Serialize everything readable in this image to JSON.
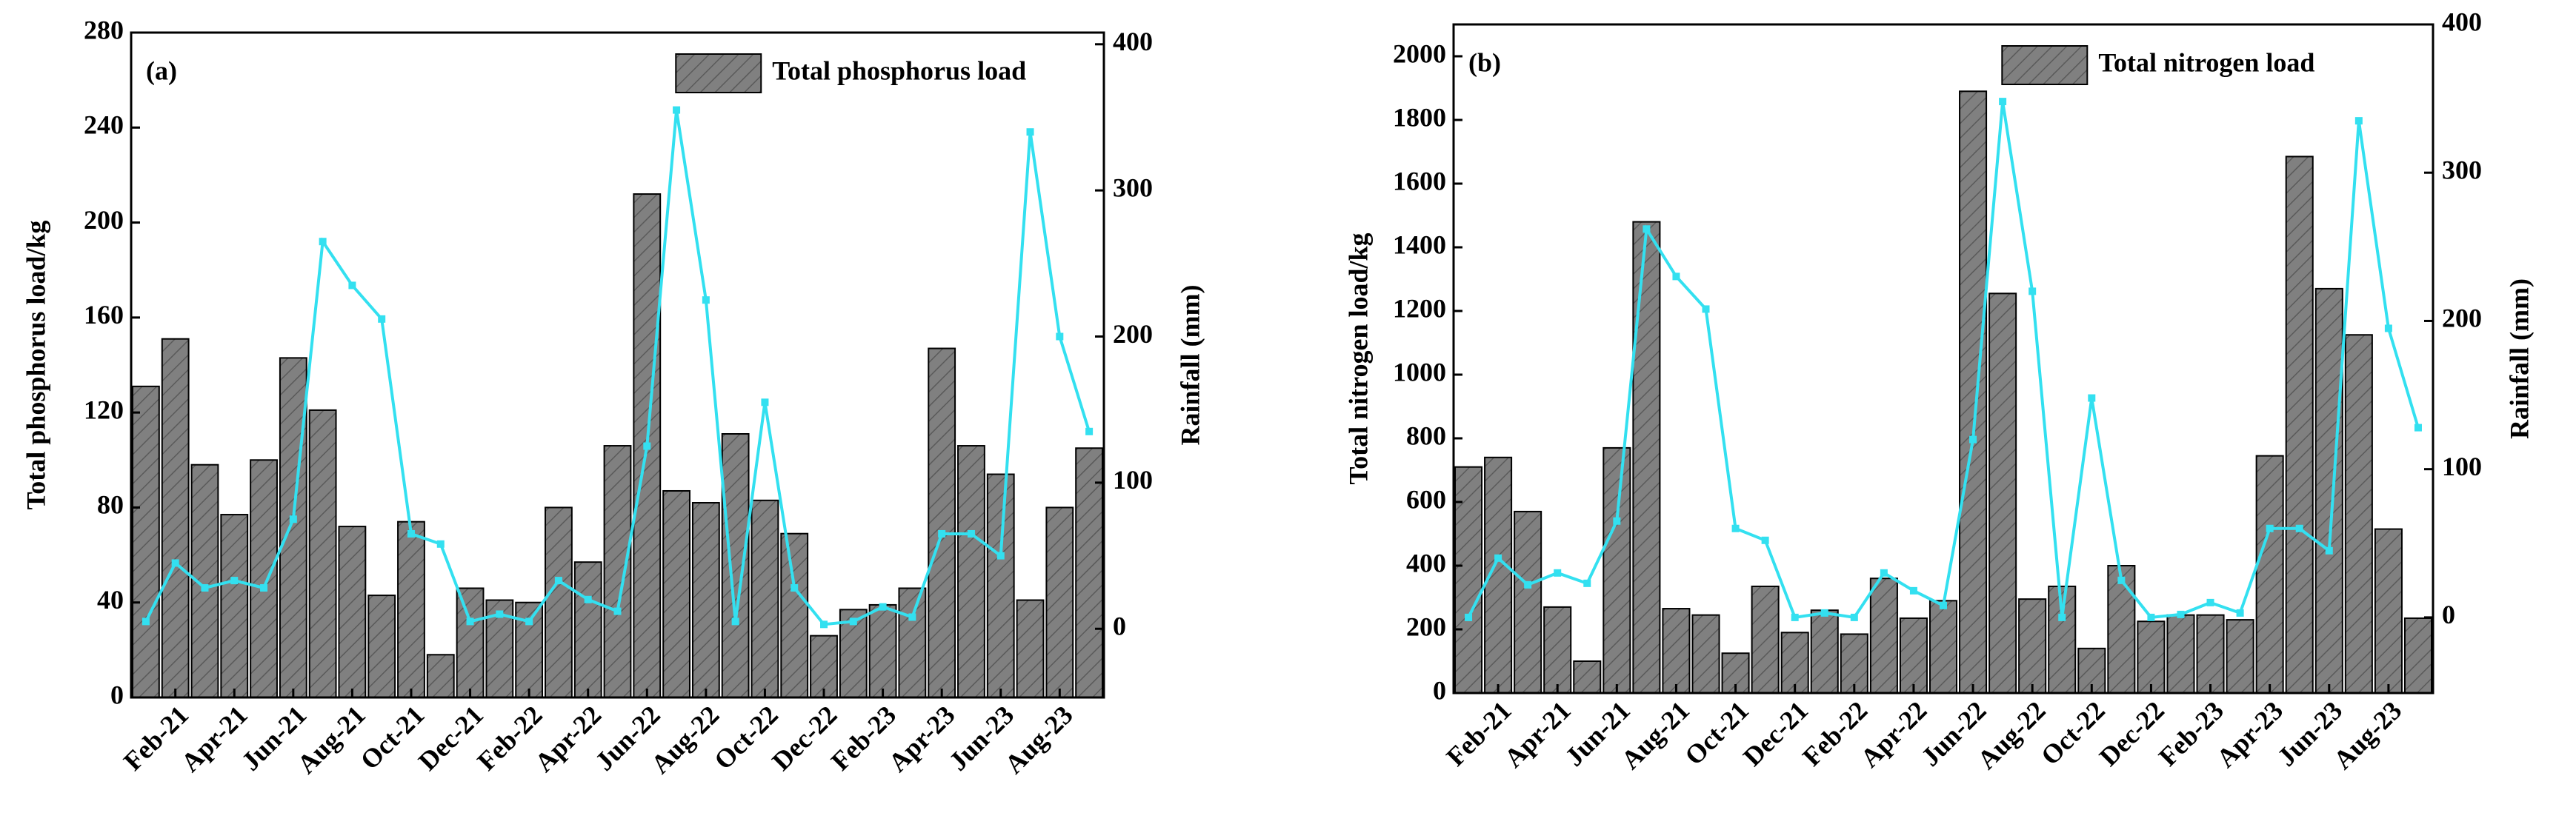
{
  "chart_data": [
    {
      "type": "bar_line",
      "label": "(a)",
      "ylabel": "Total phosphorus load/kg",
      "y2label": "Rainfall (mm)",
      "categories": [
        null,
        "Feb-21",
        null,
        "Apr-21",
        null,
        "Jun-21",
        null,
        "Aug-21",
        null,
        "Oct-21",
        null,
        "Dec-21",
        null,
        "Feb-22",
        null,
        "Apr-22",
        null,
        "Jun-22",
        null,
        "Aug-22",
        null,
        "Oct-22",
        null,
        "Dec-22",
        null,
        "Feb-23",
        null,
        "Apr-23",
        null,
        "Jun-23",
        null,
        "Aug-23",
        null
      ],
      "series": [
        {
          "name": "Total phosphorus load",
          "color": "#808080",
          "values": [
            131,
            151,
            98,
            77,
            100,
            143,
            121,
            72,
            43,
            74,
            18,
            46,
            41,
            40,
            80,
            57,
            106,
            212,
            87,
            82,
            111,
            83,
            69,
            26,
            37,
            39,
            46,
            147,
            106,
            94,
            41,
            80,
            105
          ]
        },
        {
          "color": "#33e0f0",
          "axis": "y2",
          "values": [
            5,
            45,
            28,
            33,
            28,
            75,
            265,
            235,
            212,
            65,
            58,
            5,
            10,
            5,
            33,
            20,
            12,
            125,
            355,
            225,
            5,
            155,
            28,
            3,
            5,
            15,
            8,
            65,
            65,
            50,
            340,
            200,
            135
          ]
        }
      ],
      "ylim": [
        0,
        280
      ],
      "yticks": [
        0,
        40,
        80,
        120,
        160,
        200,
        240,
        280
      ],
      "y2lim": [
        -47,
        408
      ],
      "y2ticks": [
        0,
        100,
        200,
        300,
        400
      ]
    },
    {
      "type": "bar_line",
      "label": "(b)",
      "ylabel": "Total nitrogen load/kg",
      "y2label": "Rainfall (mm)",
      "categories": [
        null,
        "Feb-21",
        null,
        "Apr-21",
        null,
        "Jun-21",
        null,
        "Aug-21",
        null,
        "Oct-21",
        null,
        "Dec-21",
        null,
        "Feb-22",
        null,
        "Apr-22",
        null,
        "Jun-22",
        null,
        "Aug-22",
        null,
        "Oct-22",
        null,
        "Dec-22",
        null,
        "Feb-23",
        null,
        "Apr-23",
        null,
        "Jun-23",
        null,
        "Aug-23",
        null
      ],
      "series": [
        {
          "name": "Total nitrogen load",
          "color": "#808080",
          "values": [
            710,
            740,
            570,
            270,
            100,
            770,
            1480,
            265,
            245,
            125,
            335,
            190,
            260,
            185,
            360,
            235,
            290,
            1890,
            1255,
            295,
            335,
            140,
            400,
            225,
            245,
            245,
            230,
            745,
            1685,
            1270,
            1125,
            515,
            235
          ]
        },
        {
          "color": "#33e0f0",
          "axis": "y2",
          "values": [
            0,
            40,
            22,
            30,
            23,
            65,
            262,
            230,
            208,
            60,
            52,
            0,
            3,
            0,
            30,
            18,
            8,
            120,
            348,
            220,
            0,
            148,
            25,
            0,
            2,
            10,
            3,
            60,
            60,
            45,
            335,
            195,
            128
          ]
        }
      ],
      "ylim": [
        0,
        2100
      ],
      "yticks": [
        0,
        200,
        400,
        600,
        800,
        1000,
        1200,
        1400,
        1600,
        1800,
        2000
      ],
      "y2lim": [
        -51,
        400
      ],
      "y2ticks": [
        0,
        100,
        200,
        300,
        400
      ]
    }
  ]
}
